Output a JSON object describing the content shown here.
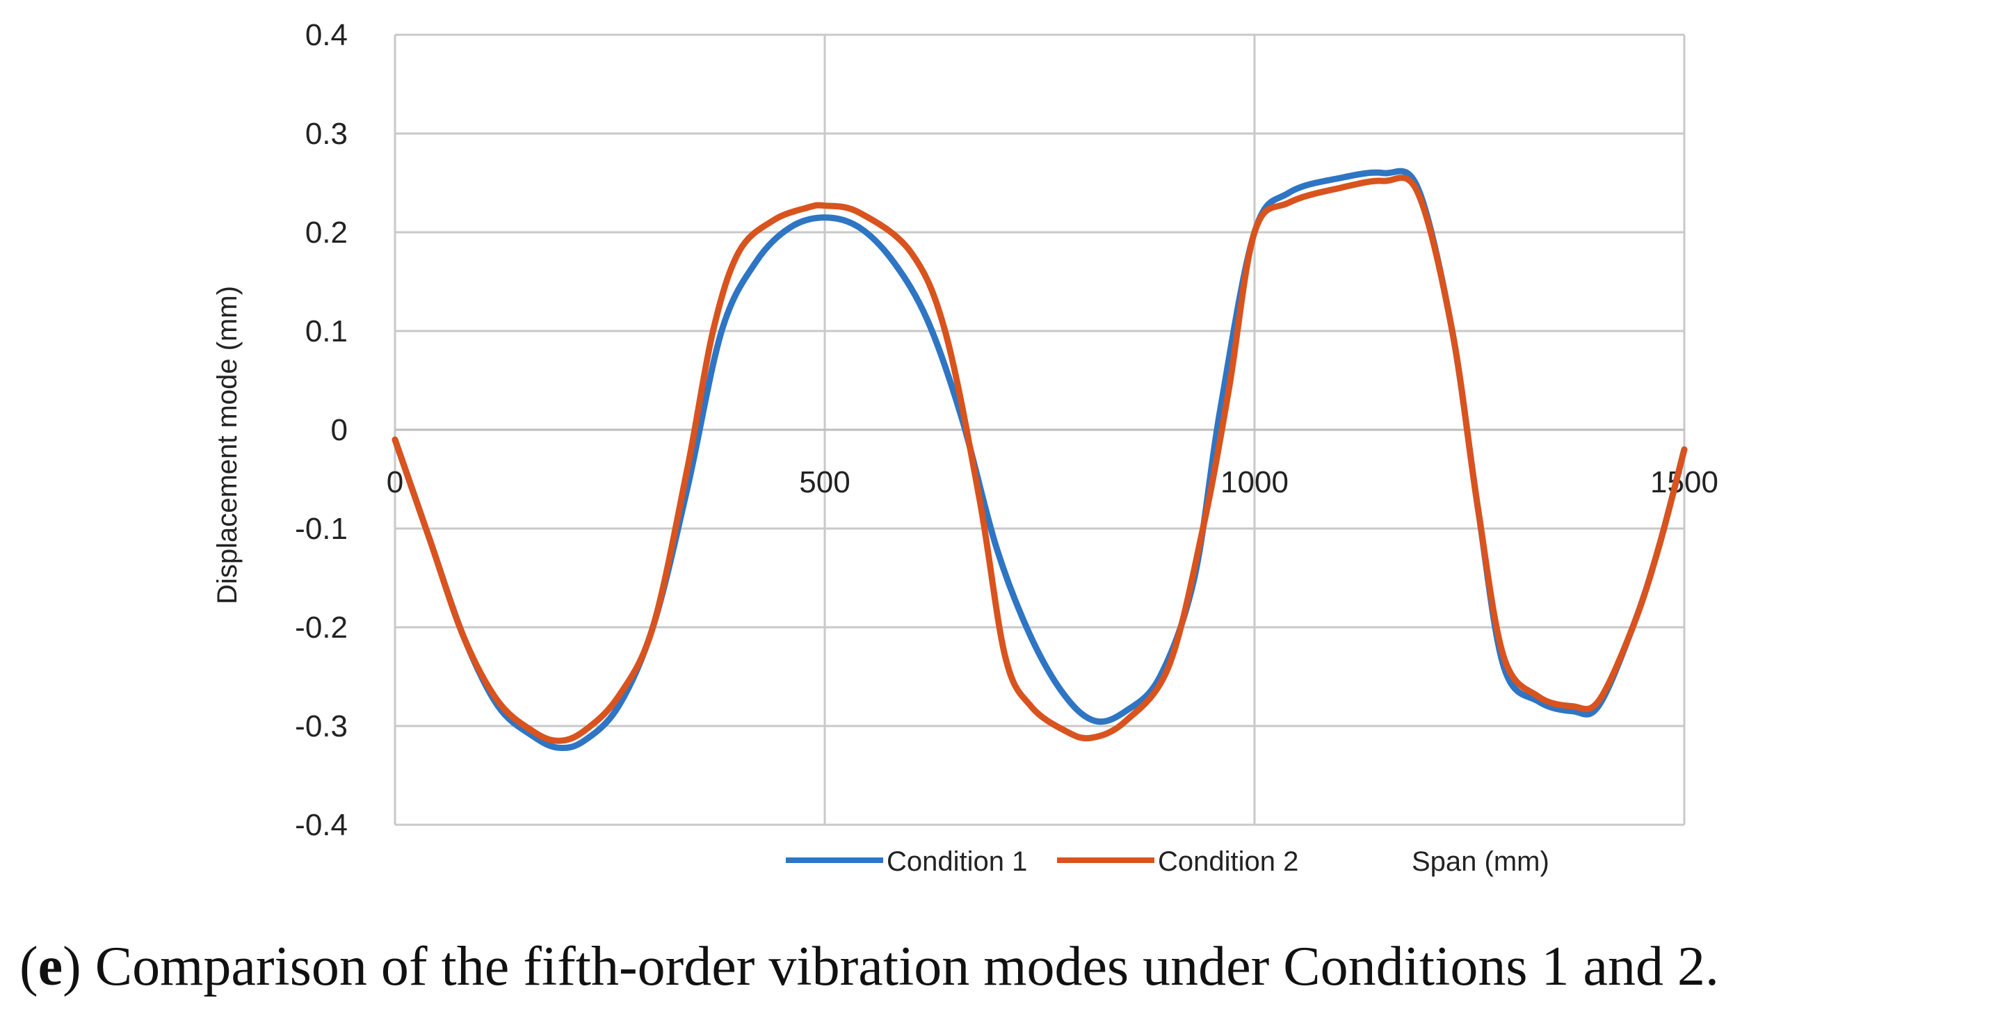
{
  "chart_data": {
    "type": "line",
    "xlabel": "Span (mm)",
    "ylabel": "Displacement mode (mm)",
    "xlim": [
      0,
      1500
    ],
    "ylim": [
      -0.4,
      0.4
    ],
    "x_ticks": [
      "0",
      "500",
      "1000",
      "1500"
    ],
    "y_ticks": [
      "0.4",
      "0.3",
      "0.2",
      "0.1",
      "0",
      "-0.1",
      "-0.2",
      "-0.3",
      "-0.4"
    ],
    "grid": true,
    "legend_position": "bottom",
    "series": [
      {
        "name": "Condition 1",
        "color": "#2E75C4",
        "points": [
          [
            0,
            -0.01
          ],
          [
            40,
            -0.11
          ],
          [
            80,
            -0.21
          ],
          [
            120,
            -0.28
          ],
          [
            160,
            -0.31
          ],
          [
            190,
            -0.322
          ],
          [
            220,
            -0.315
          ],
          [
            260,
            -0.28
          ],
          [
            300,
            -0.2
          ],
          [
            340,
            -0.06
          ],
          [
            380,
            0.1
          ],
          [
            420,
            0.17
          ],
          [
            460,
            0.205
          ],
          [
            500,
            0.215
          ],
          [
            540,
            0.205
          ],
          [
            580,
            0.17
          ],
          [
            620,
            0.11
          ],
          [
            660,
            0.01
          ],
          [
            700,
            -0.12
          ],
          [
            740,
            -0.21
          ],
          [
            780,
            -0.27
          ],
          [
            815,
            -0.295
          ],
          [
            850,
            -0.285
          ],
          [
            890,
            -0.25
          ],
          [
            930,
            -0.15
          ],
          [
            960,
            0.02
          ],
          [
            1000,
            0.2
          ],
          [
            1040,
            0.24
          ],
          [
            1100,
            0.255
          ],
          [
            1150,
            0.26
          ],
          [
            1190,
            0.245
          ],
          [
            1230,
            0.1
          ],
          [
            1260,
            -0.08
          ],
          [
            1290,
            -0.24
          ],
          [
            1330,
            -0.275
          ],
          [
            1370,
            -0.285
          ],
          [
            1400,
            -0.28
          ],
          [
            1440,
            -0.2
          ],
          [
            1470,
            -0.12
          ],
          [
            1500,
            -0.02
          ]
        ]
      },
      {
        "name": "Condition 2",
        "color": "#D9531E",
        "points": [
          [
            0,
            -0.01
          ],
          [
            40,
            -0.11
          ],
          [
            80,
            -0.21
          ],
          [
            120,
            -0.275
          ],
          [
            160,
            -0.305
          ],
          [
            190,
            -0.315
          ],
          [
            220,
            -0.305
          ],
          [
            260,
            -0.27
          ],
          [
            300,
            -0.2
          ],
          [
            340,
            -0.04
          ],
          [
            370,
            0.1
          ],
          [
            400,
            0.18
          ],
          [
            440,
            0.212
          ],
          [
            480,
            0.225
          ],
          [
            500,
            0.227
          ],
          [
            540,
            0.22
          ],
          [
            600,
            0.18
          ],
          [
            640,
            0.1
          ],
          [
            680,
            -0.07
          ],
          [
            710,
            -0.23
          ],
          [
            740,
            -0.28
          ],
          [
            780,
            -0.305
          ],
          [
            810,
            -0.312
          ],
          [
            850,
            -0.295
          ],
          [
            900,
            -0.24
          ],
          [
            940,
            -0.1
          ],
          [
            970,
            0.04
          ],
          [
            1000,
            0.2
          ],
          [
            1040,
            0.23
          ],
          [
            1100,
            0.245
          ],
          [
            1150,
            0.252
          ],
          [
            1190,
            0.24
          ],
          [
            1230,
            0.1
          ],
          [
            1260,
            -0.08
          ],
          [
            1290,
            -0.23
          ],
          [
            1330,
            -0.27
          ],
          [
            1370,
            -0.28
          ],
          [
            1400,
            -0.275
          ],
          [
            1440,
            -0.2
          ],
          [
            1470,
            -0.12
          ],
          [
            1500,
            -0.02
          ]
        ]
      }
    ],
    "legend": [
      "Condition 1",
      "Condition 2",
      "Span (mm)"
    ]
  },
  "caption": {
    "label": "e",
    "text": " Comparison of the fifth-order vibration modes under Conditions 1 and 2."
  }
}
